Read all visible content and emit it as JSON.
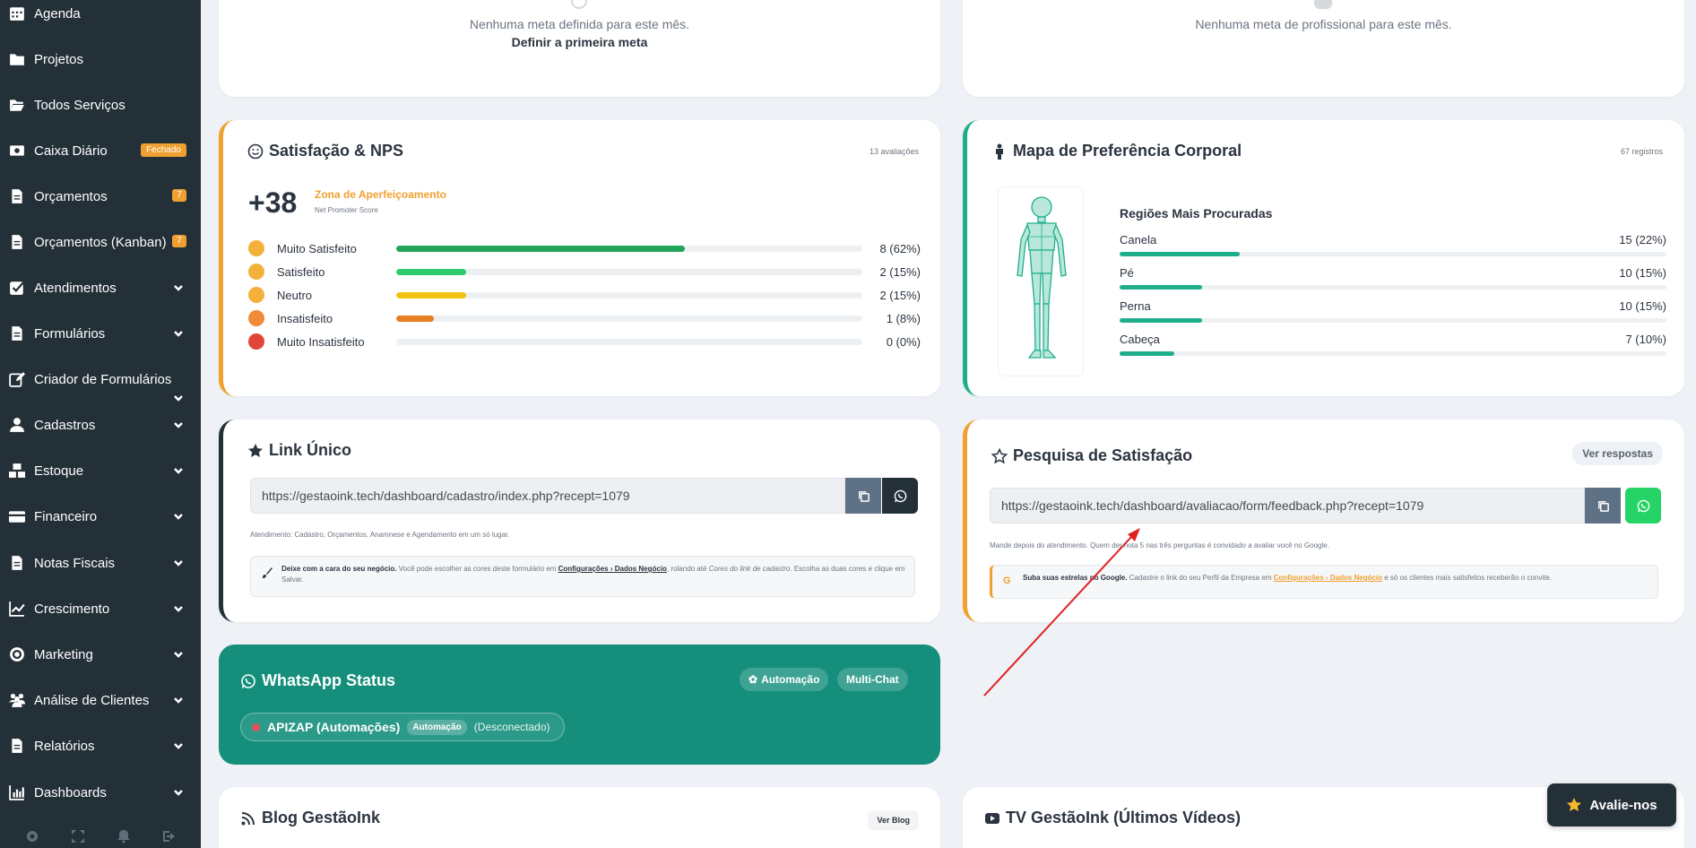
{
  "sidebar": {
    "items": [
      {
        "label": "Agenda",
        "icon": "calendar-icon"
      },
      {
        "label": "Projetos",
        "icon": "folder-icon"
      },
      {
        "label": "Todos Serviços",
        "icon": "folder-open-icon"
      },
      {
        "label": "Caixa Diário",
        "icon": "money-icon",
        "badge": "Fechado"
      },
      {
        "label": "Orçamentos",
        "icon": "document-icon",
        "badge": "7"
      },
      {
        "label": "Orçamentos (Kanban)",
        "icon": "document-icon",
        "badge": "7"
      },
      {
        "label": "Atendimentos",
        "icon": "checkbox-icon"
      },
      {
        "label": "Formulários",
        "icon": "document-icon"
      },
      {
        "label": "Criador de Formulários",
        "icon": "edit-icon"
      },
      {
        "label": "Cadastros",
        "icon": "user-icon"
      },
      {
        "label": "Estoque",
        "icon": "boxes-icon"
      },
      {
        "label": "Financeiro",
        "icon": "credit-card-icon"
      },
      {
        "label": "Notas Fiscais",
        "icon": "invoice-icon"
      },
      {
        "label": "Crescimento",
        "icon": "line-chart-icon"
      },
      {
        "label": "Marketing",
        "icon": "target-icon"
      },
      {
        "label": "Análise de Clientes",
        "icon": "users-icon"
      },
      {
        "label": "Relatórios",
        "icon": "report-icon"
      },
      {
        "label": "Dashboards",
        "icon": "bar-chart-icon"
      }
    ]
  },
  "goals": {
    "left_empty": "Nenhuma meta definida para este mês.",
    "left_link": "Definir a primeira meta",
    "right_empty": "Nenhuma meta de profissional para este mês."
  },
  "nps": {
    "title": "Satisfação & NPS",
    "count": "13 avaliações",
    "score": "+38",
    "zone": "Zona de Aperfeiçoamento",
    "subtitle": "Net Promoter Score",
    "rows": [
      {
        "label": "Muito Satisfeito",
        "value": "8 (62%)",
        "fraction": 0.62,
        "color": "#22a35a"
      },
      {
        "label": "Satisfeito",
        "value": "2 (15%)",
        "fraction": 0.15,
        "color": "#2ecc71"
      },
      {
        "label": "Neutro",
        "value": "2 (15%)",
        "fraction": 0.15,
        "color": "#f1c40f"
      },
      {
        "label": "Insatisfeito",
        "value": "1 (8%)",
        "fraction": 0.08,
        "color": "#e67e22"
      },
      {
        "label": "Muito Insatisfeito",
        "value": "0 (0%)",
        "fraction": 0.0,
        "color": "#e74c3c"
      }
    ]
  },
  "bodymap": {
    "title": "Mapa de Preferência Corporal",
    "count": "67 registros",
    "regions_title": "Regiões Mais Procuradas",
    "regions": [
      {
        "label": "Canela",
        "value": "15 (22%)",
        "fraction": 0.22
      },
      {
        "label": "Pé",
        "value": "10 (15%)",
        "fraction": 0.15
      },
      {
        "label": "Perna",
        "value": "10 (15%)",
        "fraction": 0.15
      },
      {
        "label": "Cabeça",
        "value": "7 (10%)",
        "fraction": 0.1
      }
    ]
  },
  "link_unico": {
    "title": "Link Único",
    "url": "https://gestaoink.tech/dashboard/cadastro/index.php?recept=1079",
    "caption": "Atendimento: Cadastro, Orçamentos, Anamnese e Agendamento em um só lugar.",
    "note_bold": "Deixe com a cara do seu negócio.",
    "note_text1": " Você pode escolher as cores deste formulário em ",
    "note_link": "Configurações › Dados Negócio",
    "note_text2": ", rolando até ",
    "note_italic": "Cores do link de cadastro",
    "note_text3": ". Escolha as duas cores e clique em Salvar."
  },
  "pesquisa": {
    "title": "Pesquisa de Satisfação",
    "button": "Ver respostas",
    "url": "https://gestaoink.tech/dashboard/avaliacao/form/feedback.php?recept=1079",
    "caption": "Mande depois do atendimento. Quem der nota 5 nas três perguntas é convidado a avaliar você no Google.",
    "note_bold": "Suba suas estrelas no Google.",
    "note_text1": " Cadastre o link do seu Perfil da Empresa em ",
    "note_link": "Configurações › Dados Negócio",
    "note_text2": " e só os clientes mais satisfeitos receberão o convite."
  },
  "whatsapp": {
    "title": "WhatsApp Status",
    "automation": "Automação",
    "multichat": "Multi-Chat",
    "conn_name": "APIZAP (Automações)",
    "conn_tag": "Automação",
    "conn_status": "(Desconectado)"
  },
  "blog": {
    "title": "Blog GestãoInk",
    "button": "Ver Blog"
  },
  "tv": {
    "title": "TV GestãoInk (Últimos Vídeos)"
  },
  "float_button": "Avalie-nos",
  "colors": {
    "sidebar": "#243038",
    "teal": "#1fae8c",
    "orange": "#f0a030",
    "whatsapp_card": "#158f7c"
  }
}
